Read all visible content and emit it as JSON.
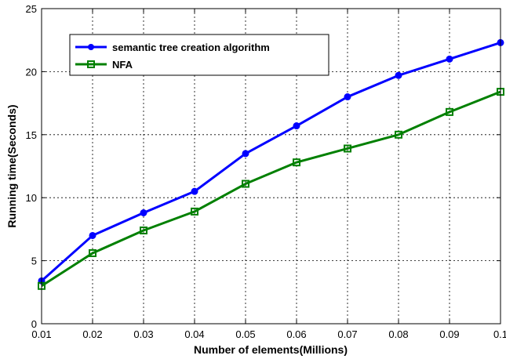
{
  "chart_data": {
    "type": "line",
    "title": "",
    "xlabel": "Number of elements(Millions)",
    "ylabel": "Running time(Seconds)",
    "xlim": [
      0.01,
      0.1
    ],
    "ylim": [
      0,
      25
    ],
    "xticks": [
      "0.01",
      "0.02",
      "0.03",
      "0.04",
      "0.05",
      "0.06",
      "0.07",
      "0.08",
      "0.09",
      "0.1"
    ],
    "yticks": [
      "0",
      "5",
      "10",
      "15",
      "20",
      "25"
    ],
    "grid": true,
    "legend_position": "top-left",
    "x": [
      0.01,
      0.02,
      0.03,
      0.04,
      0.05,
      0.06,
      0.07,
      0.08,
      0.09,
      0.1
    ],
    "series": [
      {
        "name": "semantic tree creation algorithm",
        "color": "#0000ff",
        "marker": "circle",
        "values": [
          3.4,
          7.0,
          8.8,
          10.5,
          13.5,
          15.7,
          18.0,
          19.7,
          21.0,
          22.3
        ]
      },
      {
        "name": "NFA",
        "color": "#008000",
        "marker": "square",
        "values": [
          3.0,
          5.6,
          7.4,
          8.9,
          11.1,
          12.8,
          13.9,
          15.0,
          16.8,
          18.4
        ]
      }
    ]
  }
}
